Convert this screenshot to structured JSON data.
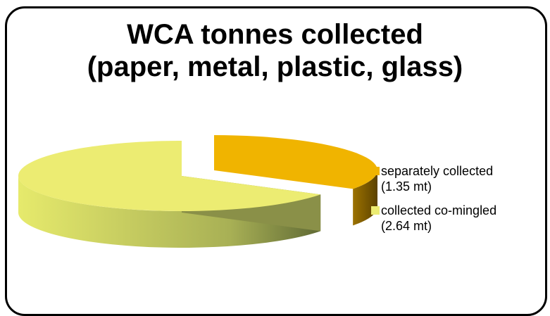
{
  "chart_data": {
    "type": "pie",
    "title_lines": [
      "WCA tonnes collected",
      "(paper, metal, plastic, glass)"
    ],
    "slices": [
      {
        "label": "separately collected",
        "value": 1.35,
        "value_label": "(1.35 mt)",
        "color": "#f0b400",
        "side_color": "#7a5800"
      },
      {
        "label": "collected co-mingled",
        "value": 2.64,
        "value_label": "(2.64 mt)",
        "color": "#ecec72",
        "side_color": "#8a9048"
      }
    ],
    "unit": "mt",
    "legend_position": "right",
    "style": "3d-exploded"
  }
}
